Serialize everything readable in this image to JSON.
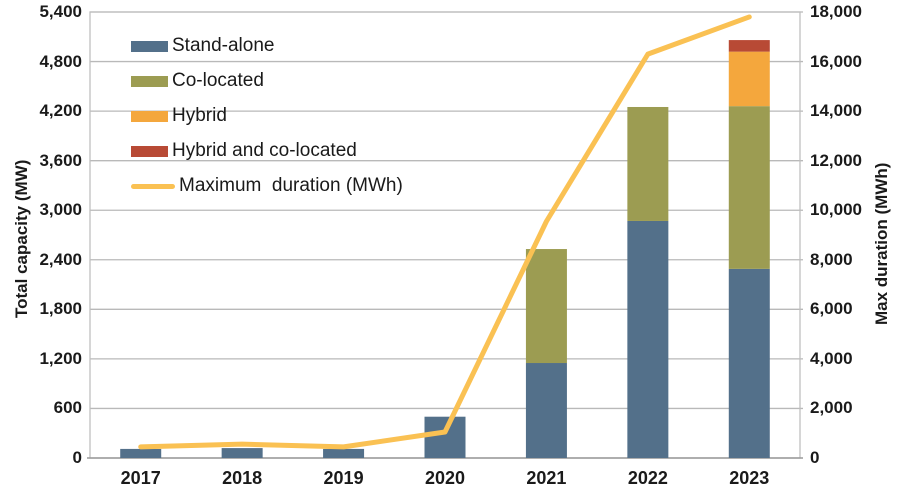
{
  "chart_data": {
    "type": "bar",
    "subtype": "stacked-bar-with-line",
    "title": "",
    "categories": [
      "2017",
      "2018",
      "2019",
      "2020",
      "2021",
      "2022",
      "2023"
    ],
    "bar_series": [
      {
        "name": "Stand-alone",
        "color": "#53708a",
        "values": [
          110,
          120,
          110,
          500,
          1150,
          2870,
          2290
        ]
      },
      {
        "name": "Co-located",
        "color": "#9c9c52",
        "values": [
          0,
          0,
          0,
          0,
          1380,
          1380,
          1970
        ]
      },
      {
        "name": "Hybrid",
        "color": "#f4a73d",
        "values": [
          0,
          0,
          0,
          0,
          0,
          0,
          660
        ]
      },
      {
        "name": "Hybrid and co-located",
        "color": "#b84a35",
        "values": [
          0,
          0,
          0,
          0,
          0,
          0,
          140
        ]
      }
    ],
    "line_series": {
      "name": "Maximum  duration (MWh)",
      "color": "#fac153",
      "axis": "right",
      "values": [
        450,
        560,
        450,
        1050,
        9550,
        16300,
        17800
      ]
    },
    "left_axis": {
      "label": "Total capacity (MW)",
      "min": 0,
      "max": 5400,
      "step": 600,
      "ticks": [
        "0",
        "600",
        "1,200",
        "1,800",
        "2,400",
        "3,000",
        "3,600",
        "4,200",
        "4,800",
        "5,400"
      ]
    },
    "right_axis": {
      "label": "Max duration (MWh)",
      "min": 0,
      "max": 18000,
      "step": 2000,
      "ticks": [
        "0",
        "2,000",
        "4,000",
        "6,000",
        "8,000",
        "10,000",
        "12,000",
        "14,000",
        "16,000",
        "18,000"
      ]
    },
    "legend_position": "top-left-inside",
    "grid": "horizontal",
    "style_colors": {
      "gridline": "#b9b9b9",
      "plot_border": "#bfbfbf",
      "bottom_axis": "#9a9a9a",
      "text": "#1a1a1a",
      "background": "#ffffff"
    }
  }
}
